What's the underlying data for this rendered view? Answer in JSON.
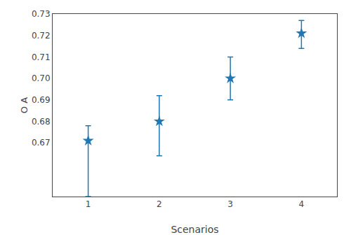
{
  "chart_data": {
    "type": "scatter",
    "x": [
      1,
      2,
      3,
      4
    ],
    "values": [
      0.671,
      0.68,
      0.7,
      0.721
    ],
    "yerr_lower": [
      0.026,
      0.016,
      0.01,
      0.007
    ],
    "yerr_upper": [
      0.007,
      0.012,
      0.01,
      0.006
    ],
    "xlabel": "Scenarios",
    "ylabel": "O A",
    "xlim": [
      0.5,
      4.5
    ],
    "xticks": [
      1,
      2,
      3,
      4
    ],
    "ylim": [
      0.645,
      0.73
    ],
    "yticks": [
      0.67,
      0.68,
      0.69,
      {
        "value": 0.7,
        "label": "0.70"
      },
      0.71,
      0.72,
      0.73
    ],
    "color": "#1f77b4",
    "marker": "star",
    "grid": false
  }
}
